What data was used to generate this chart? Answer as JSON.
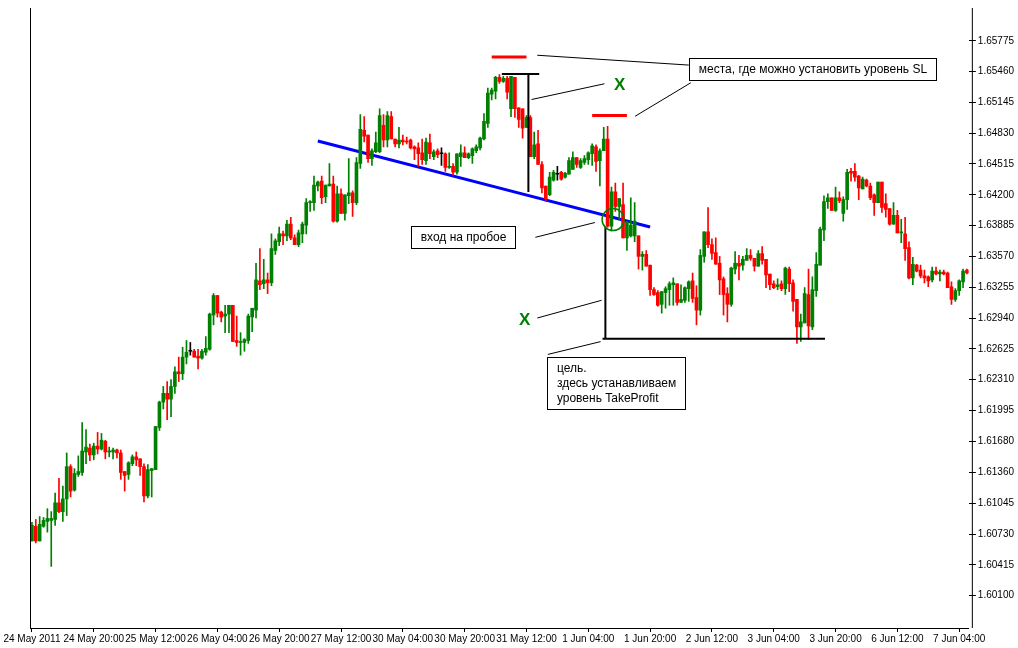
{
  "chart_data": {
    "type": "candlestick",
    "categories": [
      "24 May 2011",
      null,
      null,
      null,
      null,
      null,
      null,
      null,
      null,
      null,
      null,
      null,
      null,
      null,
      null,
      null,
      "24 May 20:00",
      null,
      null,
      null,
      null,
      null,
      null,
      null,
      null,
      null,
      null,
      null,
      null,
      null,
      null,
      null,
      "25 May 12:00",
      null,
      null,
      null,
      null,
      null,
      null,
      null,
      null,
      null,
      null,
      null,
      null,
      null,
      null,
      null,
      "26 May 04:00",
      null,
      null,
      null,
      null,
      null,
      null,
      null,
      null,
      null,
      null,
      null,
      null,
      null,
      null,
      null,
      "26 May 20:00",
      null,
      null,
      null,
      null,
      null,
      null,
      null,
      null,
      null,
      null,
      null,
      null,
      null,
      null,
      null,
      "27 May 12:00",
      null,
      null,
      null,
      null,
      null,
      null,
      null,
      null,
      null,
      null,
      null,
      null,
      null,
      null,
      null,
      "30 May 04:00",
      null,
      null,
      null,
      null,
      null,
      null,
      null,
      null,
      null,
      null,
      null,
      null,
      null,
      null,
      null,
      "30 May 20:00",
      null,
      null,
      null,
      null,
      null,
      null,
      null,
      null,
      null,
      null,
      null,
      null,
      null,
      null,
      null,
      "31 May 12:00",
      null,
      null,
      null,
      null,
      null,
      null,
      null,
      null,
      null,
      null,
      null,
      null,
      null,
      null,
      null,
      "1 Jun 04:00",
      null,
      null,
      null,
      null,
      null,
      null,
      null,
      null,
      null,
      null,
      null,
      null,
      null,
      null,
      null,
      "1 Jun 20:00",
      null,
      null,
      null,
      null,
      null,
      null,
      null,
      null,
      null,
      null,
      null,
      null,
      null,
      null,
      null,
      "2 Jun 12:00",
      null,
      null,
      null,
      null,
      null,
      null,
      null,
      null,
      null,
      null,
      null,
      null,
      null,
      null,
      null,
      "3 Jun 04:00",
      null,
      null,
      null,
      null,
      null,
      null,
      null,
      null,
      null,
      null,
      null,
      null,
      null,
      null,
      null,
      "3 Jun 20:00",
      null,
      null,
      null,
      null,
      null,
      null,
      null,
      null,
      null,
      null,
      null,
      null,
      null,
      null,
      null,
      "6 Jun 12:00",
      null,
      null,
      null,
      null,
      null,
      null,
      null,
      null,
      null,
      null,
      null,
      null,
      null,
      null,
      null,
      "7 Jun 04:00",
      null,
      null
    ],
    "ohlc": [
      [
        1.6066,
        1.6085,
        1.6066,
        1.6082
      ],
      [
        1.6081,
        1.6088,
        1.6064,
        1.6066
      ],
      [
        1.6066,
        1.6091,
        1.6066,
        1.6083
      ],
      [
        1.6081,
        1.609,
        1.608,
        1.6087
      ],
      [
        1.6086,
        1.6099,
        1.6075,
        1.6089
      ],
      [
        1.6087,
        1.6096,
        1.604,
        1.6089
      ],
      [
        1.6088,
        1.6115,
        1.6082,
        1.6105
      ],
      [
        1.6105,
        1.613,
        1.6095,
        1.6096
      ],
      [
        1.6096,
        1.6122,
        1.6086,
        1.6109
      ],
      [
        1.6109,
        1.6156,
        1.6092,
        1.6142
      ],
      [
        1.6142,
        1.6144,
        1.6111,
        1.6117
      ],
      [
        1.6118,
        1.614,
        1.6117,
        1.6135
      ],
      [
        1.6134,
        1.6153,
        1.6132,
        1.6137
      ],
      [
        1.6136,
        1.6187,
        1.6133,
        1.6158
      ],
      [
        1.6157,
        1.618,
        1.6145,
        1.6162
      ],
      [
        1.6161,
        1.6165,
        1.6148,
        1.6154
      ],
      [
        1.6154,
        1.6166,
        1.6149,
        1.6163
      ],
      [
        1.6163,
        1.6177,
        1.6155,
        1.616
      ],
      [
        1.616,
        1.6176,
        1.6159,
        1.6169
      ],
      [
        1.6168,
        1.6169,
        1.615,
        1.6157
      ],
      [
        1.6157,
        1.6162,
        1.6152,
        1.6158
      ],
      [
        1.6157,
        1.6161,
        1.615,
        1.6159
      ],
      [
        1.6159,
        1.616,
        1.6151,
        1.6156
      ],
      [
        1.6156,
        1.6159,
        1.6129,
        1.6136
      ],
      [
        1.6137,
        1.6137,
        1.6117,
        1.6133
      ],
      [
        1.6134,
        1.6147,
        1.6129,
        1.6146
      ],
      [
        1.6145,
        1.6154,
        1.6143,
        1.6152
      ],
      [
        1.6152,
        1.6157,
        1.6143,
        1.6149
      ],
      [
        1.615,
        1.615,
        1.6133,
        1.6142
      ],
      [
        1.6142,
        1.6145,
        1.6106,
        1.6112
      ],
      [
        1.6112,
        1.6144,
        1.611,
        1.6139
      ],
      [
        1.6138,
        1.614,
        1.6111,
        1.614
      ],
      [
        1.6139,
        1.6183,
        1.6139,
        1.6183
      ],
      [
        1.6182,
        1.6209,
        1.6179,
        1.6208
      ],
      [
        1.6208,
        1.6224,
        1.6201,
        1.6217
      ],
      [
        1.6217,
        1.6229,
        1.619,
        1.6211
      ],
      [
        1.6211,
        1.6231,
        1.6193,
        1.6224
      ],
      [
        1.6224,
        1.6244,
        1.6217,
        1.6239
      ],
      [
        1.6239,
        1.6254,
        1.6229,
        1.6237
      ],
      [
        1.6237,
        1.6264,
        1.6231,
        1.6254
      ],
      [
        1.6254,
        1.6271,
        1.6247,
        1.6259
      ],
      [
        1.626,
        1.6269,
        1.6256,
        1.626
      ],
      [
        1.626,
        1.6262,
        1.6254,
        1.6254
      ],
      [
        1.6255,
        1.6262,
        1.6242,
        1.6253
      ],
      [
        1.6253,
        1.6262,
        1.6252,
        1.626
      ],
      [
        1.6259,
        1.6275,
        1.6256,
        1.6263
      ],
      [
        1.6262,
        1.6299,
        1.6261,
        1.6298
      ],
      [
        1.6297,
        1.6319,
        1.6287,
        1.6317
      ],
      [
        1.6317,
        1.6317,
        1.6295,
        1.6299
      ],
      [
        1.63,
        1.6301,
        1.629,
        1.6295
      ],
      [
        1.6296,
        1.6307,
        1.6279,
        1.6298
      ],
      [
        1.6298,
        1.6307,
        1.6279,
        1.6307
      ],
      [
        1.6307,
        1.6307,
        1.627,
        1.627
      ],
      [
        1.6271,
        1.6296,
        1.6265,
        1.6269
      ],
      [
        1.6269,
        1.6279,
        1.6256,
        1.627
      ],
      [
        1.6269,
        1.6273,
        1.626,
        1.6272
      ],
      [
        1.6271,
        1.6298,
        1.6268,
        1.6296
      ],
      [
        1.6295,
        1.6304,
        1.628,
        1.6304
      ],
      [
        1.6302,
        1.635,
        1.6294,
        1.6333
      ],
      [
        1.6332,
        1.6365,
        1.6323,
        1.6328
      ],
      [
        1.6329,
        1.6354,
        1.6324,
        1.6333
      ],
      [
        1.6333,
        1.634,
        1.6319,
        1.633
      ],
      [
        1.633,
        1.638,
        1.6327,
        1.6365
      ],
      [
        1.6363,
        1.6375,
        1.6359,
        1.6373
      ],
      [
        1.6372,
        1.6387,
        1.6368,
        1.638
      ],
      [
        1.638,
        1.6383,
        1.6369,
        1.6378
      ],
      [
        1.6378,
        1.6394,
        1.6373,
        1.639
      ],
      [
        1.639,
        1.6397,
        1.6374,
        1.6376
      ],
      [
        1.6376,
        1.6379,
        1.6369,
        1.6369
      ],
      [
        1.6369,
        1.6384,
        1.6367,
        1.6381
      ],
      [
        1.638,
        1.6392,
        1.6371,
        1.639
      ],
      [
        1.6389,
        1.6416,
        1.638,
        1.6412
      ],
      [
        1.6412,
        1.6414,
        1.6403,
        1.6413
      ],
      [
        1.6412,
        1.6439,
        1.6404,
        1.643
      ],
      [
        1.6429,
        1.6434,
        1.6424,
        1.6433
      ],
      [
        1.6434,
        1.6439,
        1.6411,
        1.6417
      ],
      [
        1.6418,
        1.643,
        1.6412,
        1.643
      ],
      [
        1.6429,
        1.6452,
        1.6429,
        1.6431
      ],
      [
        1.6431,
        1.6439,
        1.6392,
        1.6393
      ],
      [
        1.6393,
        1.6429,
        1.6392,
        1.6421
      ],
      [
        1.6421,
        1.6426,
        1.6401,
        1.6401
      ],
      [
        1.6401,
        1.642,
        1.6394,
        1.642
      ],
      [
        1.6419,
        1.6457,
        1.6411,
        1.6422
      ],
      [
        1.6422,
        1.6424,
        1.6398,
        1.6412
      ],
      [
        1.6412,
        1.6458,
        1.641,
        1.6453
      ],
      [
        1.6452,
        1.6502,
        1.6447,
        1.6487
      ],
      [
        1.6486,
        1.65,
        1.6474,
        1.648
      ],
      [
        1.6481,
        1.6481,
        1.6453,
        1.6457
      ],
      [
        1.6457,
        1.6467,
        1.645,
        1.6465
      ],
      [
        1.6464,
        1.6484,
        1.6463,
        1.6473
      ],
      [
        1.6464,
        1.6508,
        1.6463,
        1.6501
      ],
      [
        1.6491,
        1.6502,
        1.6469,
        1.6476
      ],
      [
        1.6476,
        1.6505,
        1.6469,
        1.6501
      ],
      [
        1.65,
        1.6505,
        1.6477,
        1.6477
      ],
      [
        1.6477,
        1.6477,
        1.6469,
        1.6472
      ],
      [
        1.6472,
        1.6489,
        1.6468,
        1.6476
      ],
      [
        1.6476,
        1.6481,
        1.6471,
        1.6474
      ],
      [
        1.6475,
        1.6479,
        1.6472,
        1.6474
      ],
      [
        1.6476,
        1.6477,
        1.6467,
        1.6468
      ],
      [
        1.6469,
        1.647,
        1.6456,
        1.6467
      ],
      [
        1.6468,
        1.6473,
        1.6449,
        1.6462
      ],
      [
        1.6463,
        1.6477,
        1.6451,
        1.6456
      ],
      [
        1.6455,
        1.6478,
        1.6451,
        1.6474
      ],
      [
        1.6473,
        1.6482,
        1.6457,
        1.6462
      ],
      [
        1.6459,
        1.6466,
        1.6456,
        1.6464
      ],
      [
        1.6465,
        1.6467,
        1.6458,
        1.6461
      ],
      [
        1.6462,
        1.6468,
        1.645,
        1.6462
      ],
      [
        1.6462,
        1.6463,
        1.6444,
        1.6448
      ],
      [
        1.6448,
        1.6463,
        1.6447,
        1.6449
      ],
      [
        1.6449,
        1.6452,
        1.644,
        1.6443
      ],
      [
        1.6443,
        1.6462,
        1.6441,
        1.6462
      ],
      [
        1.6459,
        1.6471,
        1.6449,
        1.6463
      ],
      [
        1.6463,
        1.6469,
        1.6458,
        1.6458
      ],
      [
        1.6458,
        1.6463,
        1.6457,
        1.6462
      ],
      [
        1.646,
        1.6468,
        1.6452,
        1.6467
      ],
      [
        1.6465,
        1.6471,
        1.6463,
        1.6469
      ],
      [
        1.6468,
        1.6479,
        1.6466,
        1.6478
      ],
      [
        1.6477,
        1.6503,
        1.6476,
        1.6495
      ],
      [
        1.6493,
        1.6529,
        1.6489,
        1.6524
      ],
      [
        1.6523,
        1.6529,
        1.6517,
        1.6527
      ],
      [
        1.6526,
        1.6541,
        1.6518,
        1.654
      ],
      [
        1.654,
        1.6543,
        1.6534,
        1.6536
      ],
      [
        1.6536,
        1.6541,
        1.6535,
        1.6539
      ],
      [
        1.6539,
        1.6541,
        1.6518,
        1.6525
      ],
      [
        1.6508,
        1.6541,
        1.65,
        1.6541
      ],
      [
        1.654,
        1.654,
        1.6499,
        1.6508
      ],
      [
        1.6509,
        1.6509,
        1.6489,
        1.6497
      ],
      [
        1.6508,
        1.6508,
        1.6478,
        1.6488
      ],
      [
        1.6489,
        1.6501,
        1.6489,
        1.6499
      ],
      [
        1.6499,
        1.6501,
        1.6459,
        1.6459
      ],
      [
        1.6459,
        1.6484,
        1.6457,
        1.6471
      ],
      [
        1.6472,
        1.6486,
        1.6451,
        1.6451
      ],
      [
        1.6451,
        1.6454,
        1.6422,
        1.6427
      ],
      [
        1.6429,
        1.6429,
        1.6413,
        1.6416
      ],
      [
        1.642,
        1.6443,
        1.6419,
        1.6438
      ],
      [
        1.6435,
        1.6445,
        1.6434,
        1.6443
      ],
      [
        1.6441,
        1.6449,
        1.6435,
        1.6441
      ],
      [
        1.6443,
        1.6444,
        1.6435,
        1.6436
      ],
      [
        1.6438,
        1.6443,
        1.6437,
        1.6442
      ],
      [
        1.6441,
        1.6458,
        1.6441,
        1.6455
      ],
      [
        1.6446,
        1.6464,
        1.6446,
        1.6458
      ],
      [
        1.6458,
        1.6458,
        1.6448,
        1.6451
      ],
      [
        1.6448,
        1.6457,
        1.6447,
        1.6455
      ],
      [
        1.6453,
        1.646,
        1.6451,
        1.6457
      ],
      [
        1.6456,
        1.6464,
        1.6451,
        1.6463
      ],
      [
        1.6462,
        1.6472,
        1.645,
        1.647
      ],
      [
        1.6469,
        1.6471,
        1.6444,
        1.6454
      ],
      [
        1.6455,
        1.6467,
        1.6429,
        1.6465
      ],
      [
        1.6465,
        1.6489,
        1.6465,
        1.6477
      ],
      [
        1.6477,
        1.649,
        1.6387,
        1.6388
      ],
      [
        1.6388,
        1.6428,
        1.6383,
        1.6423
      ],
      [
        1.6423,
        1.6432,
        1.6403,
        1.6408
      ],
      [
        1.6408,
        1.6416,
        1.6394,
        1.6416
      ],
      [
        1.641,
        1.6432,
        1.6376,
        1.6376
      ],
      [
        1.6376,
        1.6393,
        1.6363,
        1.6392
      ],
      [
        1.6378,
        1.6417,
        1.6377,
        1.6389
      ],
      [
        1.6378,
        1.6412,
        1.6372,
        1.6393
      ],
      [
        1.6378,
        1.6378,
        1.6344,
        1.6357
      ],
      [
        1.6357,
        1.6362,
        1.6343,
        1.6359
      ],
      [
        1.6359,
        1.6363,
        1.6347,
        1.6347
      ],
      [
        1.6348,
        1.6348,
        1.6317,
        1.6323
      ],
      [
        1.6323,
        1.6325,
        1.6317,
        1.6318
      ],
      [
        1.632,
        1.6322,
        1.6306,
        1.6307
      ],
      [
        1.6308,
        1.6321,
        1.6299,
        1.6321
      ],
      [
        1.632,
        1.6326,
        1.6304,
        1.6324
      ],
      [
        1.6323,
        1.6331,
        1.6307,
        1.6329
      ],
      [
        1.6328,
        1.6335,
        1.6307,
        1.633
      ],
      [
        1.6329,
        1.6329,
        1.6307,
        1.631
      ],
      [
        1.631,
        1.6328,
        1.631,
        1.6313
      ],
      [
        1.6312,
        1.6326,
        1.631,
        1.6325
      ],
      [
        1.6324,
        1.6332,
        1.6311,
        1.6331
      ],
      [
        1.6332,
        1.634,
        1.631,
        1.6314
      ],
      [
        1.6315,
        1.6327,
        1.6287,
        1.6302
      ],
      [
        1.6302,
        1.6364,
        1.6297,
        1.6358
      ],
      [
        1.6357,
        1.6382,
        1.6351,
        1.6382
      ],
      [
        1.6382,
        1.6407,
        1.6366,
        1.6369
      ],
      [
        1.6369,
        1.6375,
        1.6354,
        1.636
      ],
      [
        1.6361,
        1.6376,
        1.6349,
        1.6349
      ],
      [
        1.635,
        1.6357,
        1.6318,
        1.6333
      ],
      [
        1.6334,
        1.6336,
        1.6297,
        1.6318
      ],
      [
        1.6319,
        1.6325,
        1.629,
        1.6308
      ],
      [
        1.6308,
        1.6346,
        1.6306,
        1.6345
      ],
      [
        1.6344,
        1.6362,
        1.6339,
        1.635
      ],
      [
        1.635,
        1.6358,
        1.6333,
        1.6347
      ],
      [
        1.6348,
        1.6357,
        1.6343,
        1.6354
      ],
      [
        1.6353,
        1.6365,
        1.6353,
        1.6358
      ],
      [
        1.6358,
        1.6364,
        1.6353,
        1.6355
      ],
      [
        1.6355,
        1.6355,
        1.6342,
        1.6347
      ],
      [
        1.6347,
        1.6363,
        1.6347,
        1.636
      ],
      [
        1.636,
        1.6367,
        1.6349,
        1.6353
      ],
      [
        1.6354,
        1.6354,
        1.6325,
        1.6338
      ],
      [
        1.6339,
        1.6339,
        1.6323,
        1.6328
      ],
      [
        1.6329,
        1.6332,
        1.6324,
        1.6325
      ],
      [
        1.6326,
        1.6334,
        1.6323,
        1.6328
      ],
      [
        1.6329,
        1.6332,
        1.6322,
        1.6324
      ],
      [
        1.6324,
        1.6346,
        1.6318,
        1.6345
      ],
      [
        1.6344,
        1.6346,
        1.6321,
        1.6329
      ],
      [
        1.633,
        1.6333,
        1.6301,
        1.6311
      ],
      [
        1.6313,
        1.6313,
        1.6268,
        1.6285
      ],
      [
        1.6285,
        1.6298,
        1.627,
        1.629
      ],
      [
        1.6289,
        1.6325,
        1.6289,
        1.6319
      ],
      [
        1.6318,
        1.6344,
        1.6272,
        1.6286
      ],
      [
        1.6285,
        1.6336,
        1.6282,
        1.6323
      ],
      [
        1.6322,
        1.6361,
        1.6316,
        1.6349
      ],
      [
        1.6348,
        1.6387,
        1.6348,
        1.6385
      ],
      [
        1.6384,
        1.6419,
        1.6373,
        1.6413
      ],
      [
        1.6413,
        1.6421,
        1.6406,
        1.6417
      ],
      [
        1.6417,
        1.6417,
        1.6404,
        1.6404
      ],
      [
        1.6404,
        1.6428,
        1.6403,
        1.6417
      ],
      [
        1.6417,
        1.6423,
        1.6412,
        1.6414
      ],
      [
        1.6401,
        1.6418,
        1.6393,
        1.6415
      ],
      [
        1.6415,
        1.6446,
        1.6405,
        1.6443
      ],
      [
        1.6444,
        1.6447,
        1.6434,
        1.6442
      ],
      [
        1.6444,
        1.6452,
        1.6434,
        1.6438
      ],
      [
        1.6439,
        1.644,
        1.6415,
        1.6427
      ],
      [
        1.6426,
        1.6438,
        1.6426,
        1.6436
      ],
      [
        1.6435,
        1.6436,
        1.6428,
        1.6429
      ],
      [
        1.6429,
        1.6432,
        1.6415,
        1.6417
      ],
      [
        1.642,
        1.6421,
        1.6399,
        1.6412
      ],
      [
        1.6412,
        1.6433,
        1.6412,
        1.6433
      ],
      [
        1.6433,
        1.6433,
        1.6402,
        1.6407
      ],
      [
        1.6411,
        1.6421,
        1.6397,
        1.6405
      ],
      [
        1.6406,
        1.6406,
        1.6389,
        1.639
      ],
      [
        1.639,
        1.6412,
        1.639,
        1.6399
      ],
      [
        1.6399,
        1.6404,
        1.6381,
        1.6381
      ],
      [
        1.6381,
        1.6395,
        1.6371,
        1.6382
      ],
      [
        1.638,
        1.6397,
        1.6353,
        1.6365
      ],
      [
        1.6366,
        1.6372,
        1.6334,
        1.6335
      ],
      [
        1.6335,
        1.6356,
        1.6328,
        1.6349
      ],
      [
        1.6348,
        1.6349,
        1.6341,
        1.6342
      ],
      [
        1.6343,
        1.6348,
        1.6335,
        1.6337
      ],
      [
        1.6337,
        1.6343,
        1.633,
        1.6335
      ],
      [
        1.6336,
        1.6337,
        1.6326,
        1.6332
      ],
      [
        1.6333,
        1.6346,
        1.6331,
        1.6342
      ],
      [
        1.6342,
        1.6346,
        1.6338,
        1.6339
      ],
      [
        1.6339,
        1.6343,
        1.6332,
        1.6341
      ],
      [
        1.6341,
        1.6343,
        1.6338,
        1.6339
      ],
      [
        1.634,
        1.6341,
        1.6325,
        1.6325
      ],
      [
        1.6326,
        1.6331,
        1.6308,
        1.6313
      ],
      [
        1.6313,
        1.6324,
        1.6311,
        1.6322
      ],
      [
        1.6322,
        1.6333,
        1.6317,
        1.6332
      ],
      [
        1.6331,
        1.6344,
        1.6325,
        1.6342
      ],
      [
        1.6343,
        1.6344,
        1.6339,
        1.634
      ]
    ],
    "colors": [
      "#008000",
      "#ff0000",
      "#008000",
      "#008000",
      "#008000",
      "#008000",
      "#008000",
      "#ff0000",
      "#008000",
      "#008000",
      "#ff0000",
      "#008000",
      "#008000",
      "#008000",
      "#008000",
      "#ff0000",
      "#008000",
      "#ff0000",
      "#008000",
      "#ff0000",
      "#008000",
      "#008000",
      "#ff0000",
      "#ff0000",
      "#ff0000",
      "#008000",
      "#008000",
      "#ff0000",
      "#ff0000",
      "#ff0000",
      "#008000",
      "#008000",
      "#008000",
      "#008000",
      "#008000",
      "#ff0000",
      "#008000",
      "#008000",
      "#ff0000",
      "#008000",
      "#008000",
      "#000000",
      "#ff0000",
      "#ff0000",
      "#008000",
      "#008000",
      "#008000",
      "#008000",
      "#ff0000",
      "#ff0000",
      "#008000",
      "#008000",
      "#ff0000",
      "#ff0000",
      "#008000",
      "#008000",
      "#008000",
      "#008000",
      "#008000",
      "#ff0000",
      "#008000",
      "#ff0000",
      "#008000",
      "#008000",
      "#008000",
      "#ff0000",
      "#008000",
      "#ff0000",
      "#ff0000",
      "#008000",
      "#008000",
      "#008000",
      "#008000",
      "#008000",
      "#008000",
      "#ff0000",
      "#008000",
      "#008000",
      "#ff0000",
      "#008000",
      "#ff0000",
      "#008000",
      "#008000",
      "#ff0000",
      "#008000",
      "#008000",
      "#ff0000",
      "#ff0000",
      "#008000",
      "#008000",
      "#008000",
      "#ff0000",
      "#008000",
      "#ff0000",
      "#ff0000",
      "#008000",
      "#ff0000",
      "#ff0000",
      "#ff0000",
      "#ff0000",
      "#ff0000",
      "#ff0000",
      "#008000",
      "#ff0000",
      "#008000",
      "#ff0000",
      "#000000",
      "#ff0000",
      "#008000",
      "#ff0000",
      "#008000",
      "#008000",
      "#ff0000",
      "#008000",
      "#008000",
      "#008000",
      "#008000",
      "#008000",
      "#008000",
      "#008000",
      "#008000",
      "#ff0000",
      "#008000",
      "#ff0000",
      "#008000",
      "#ff0000",
      "#ff0000",
      "#ff0000",
      "#008000",
      "#ff0000",
      "#008000",
      "#ff0000",
      "#ff0000",
      "#ff0000",
      "#008000",
      "#008000",
      "#000000",
      "#ff0000",
      "#008000",
      "#008000",
      "#008000",
      "#ff0000",
      "#008000",
      "#008000",
      "#008000",
      "#008000",
      "#ff0000",
      "#008000",
      "#008000",
      "#ff0000",
      "#008000",
      "#ff0000",
      "#008000",
      "#ff0000",
      "#008000",
      "#008000",
      "#008000",
      "#ff0000",
      "#008000",
      "#ff0000",
      "#ff0000",
      "#ff0000",
      "#ff0000",
      "#008000",
      "#008000",
      "#008000",
      "#008000",
      "#ff0000",
      "#008000",
      "#008000",
      "#008000",
      "#ff0000",
      "#ff0000",
      "#008000",
      "#008000",
      "#ff0000",
      "#ff0000",
      "#ff0000",
      "#ff0000",
      "#ff0000",
      "#ff0000",
      "#008000",
      "#008000",
      "#ff0000",
      "#008000",
      "#008000",
      "#ff0000",
      "#ff0000",
      "#008000",
      "#ff0000",
      "#ff0000",
      "#ff0000",
      "#ff0000",
      "#008000",
      "#ff0000",
      "#008000",
      "#ff0000",
      "#ff0000",
      "#ff0000",
      "#008000",
      "#008000",
      "#ff0000",
      "#008000",
      "#008000",
      "#008000",
      "#008000",
      "#008000",
      "#ff0000",
      "#008000",
      "#ff0000",
      "#008000",
      "#008000",
      "#ff0000",
      "#ff0000",
      "#ff0000",
      "#008000",
      "#ff0000",
      "#ff0000",
      "#ff0000",
      "#008000",
      "#ff0000",
      "#ff0000",
      "#ff0000",
      "#008000",
      "#ff0000",
      "#008000",
      "#ff0000",
      "#ff0000",
      "#008000",
      "#ff0000",
      "#ff0000",
      "#ff0000",
      "#ff0000",
      "#008000",
      "#ff0000",
      "#008000",
      "#ff0000",
      "#ff0000",
      "#ff0000",
      "#008000",
      "#008000",
      "#008000",
      "#ff0000"
    ],
    "series": [
      {
        "type": "line",
        "color": "#0000ff",
        "values": [
          null,
          null,
          null,
          null,
          null,
          null,
          null,
          null,
          null,
          null,
          null,
          null,
          null,
          null,
          null,
          null,
          null,
          null,
          null,
          null,
          null,
          null,
          null,
          null,
          null,
          null,
          null,
          null,
          null,
          null,
          null,
          null,
          null,
          null,
          null,
          null,
          null,
          null,
          null,
          null,
          null,
          null,
          null,
          null,
          null,
          null,
          null,
          null,
          null,
          null,
          null,
          null,
          null,
          null,
          null,
          null,
          null,
          null,
          null,
          null,
          null,
          null,
          null,
          null,
          null,
          null,
          null,
          null,
          null,
          null,
          null,
          null,
          null,
          null,
          1.6475,
          null,
          null,
          null,
          null,
          null,
          null,
          null,
          null,
          null,
          null,
          null,
          null,
          null,
          null,
          null,
          null,
          null,
          null,
          null,
          null,
          null,
          null,
          null,
          null,
          null,
          null,
          null,
          null,
          null,
          null,
          null,
          null,
          null,
          null,
          null,
          null,
          null,
          null,
          null,
          null,
          null,
          null,
          null,
          null,
          null,
          null,
          null,
          null,
          null,
          null,
          null,
          null,
          null,
          null,
          null,
          null,
          null,
          null,
          null,
          null,
          null,
          null,
          null,
          null,
          null,
          null,
          null,
          null,
          null,
          null,
          null,
          null,
          null,
          null,
          null,
          null,
          null,
          null,
          null,
          null,
          null,
          null,
          null,
          null,
          null,
          1.6387,
          null,
          null,
          null,
          null,
          null,
          null,
          null,
          null,
          null,
          null,
          null,
          null,
          null,
          null,
          null,
          null,
          null,
          null,
          null,
          null,
          null,
          null,
          null,
          null,
          null,
          null,
          null,
          null,
          null,
          null,
          null,
          null,
          null,
          null,
          null,
          null,
          null,
          null,
          null,
          null,
          null,
          null,
          null,
          null,
          null,
          null,
          null,
          null,
          null,
          null,
          null,
          null,
          null,
          null,
          null,
          null,
          null,
          null,
          null,
          null,
          null,
          null,
          null,
          null,
          null,
          null,
          null,
          null,
          null,
          null,
          null,
          null,
          null,
          null,
          null,
          null,
          null,
          null,
          null,
          null,
          null,
          null
        ]
      },
      {
        "type": "line",
        "color": "#ff0000",
        "values": [
          null,
          null,
          null,
          null,
          null,
          null,
          null,
          null,
          null,
          null,
          null,
          null,
          null,
          null,
          null,
          null,
          null,
          null,
          null,
          null,
          null,
          null,
          null,
          null,
          null,
          null,
          null,
          null,
          null,
          null,
          null,
          null,
          null,
          null,
          null,
          null,
          null,
          null,
          null,
          null,
          null,
          null,
          null,
          null,
          null,
          null,
          null,
          null,
          null,
          null,
          null,
          null,
          null,
          null,
          null,
          null,
          null,
          null,
          null,
          null,
          null,
          null,
          null,
          null,
          null,
          null,
          null,
          null,
          null,
          null,
          null,
          null,
          null,
          null,
          null,
          null,
          null,
          null,
          null,
          null,
          null,
          null,
          null,
          null,
          null,
          null,
          null,
          null,
          null,
          null,
          null,
          null,
          null,
          null,
          null,
          null,
          null,
          null,
          null,
          null,
          null,
          null,
          null,
          null,
          null,
          null,
          null,
          null,
          null,
          null,
          null,
          null,
          null,
          null,
          null,
          null,
          null,
          null,
          null,
          1.6561,
          null,
          null,
          null,
          null,
          null,
          null,
          null,
          null,
          1.6561,
          null,
          null,
          null,
          null,
          null,
          null,
          null,
          null,
          null,
          null,
          null,
          null,
          null,
          null,
          null,
          null,
          null,
          null,
          null,
          null,
          null,
          null,
          null,
          null,
          null,
          null,
          null,
          null,
          null,
          null,
          null,
          null,
          null,
          null,
          null,
          null,
          null,
          null,
          null,
          null,
          null,
          null,
          null,
          null,
          null,
          null,
          null,
          null,
          null,
          null,
          null,
          null,
          null,
          null,
          null,
          null,
          null,
          null,
          null,
          null,
          null,
          null,
          null,
          null,
          null,
          null,
          null,
          null,
          null,
          null,
          null,
          null,
          null,
          null,
          null,
          null,
          null,
          null,
          null,
          null,
          null,
          null,
          null,
          null,
          null,
          null,
          null,
          null,
          null,
          null,
          null,
          null,
          null,
          null,
          null,
          null,
          null,
          null,
          null,
          null,
          null,
          null,
          null,
          null,
          null,
          null,
          null,
          null,
          null,
          null,
          null,
          null,
          null,
          null
        ]
      },
      {
        "type": "line",
        "color": "#ff0000",
        "values": [
          null,
          null,
          null,
          null,
          null,
          null,
          null,
          null,
          null,
          null,
          null,
          null,
          null,
          null,
          null,
          null,
          null,
          null,
          null,
          null,
          null,
          null,
          null,
          null,
          null,
          null,
          null,
          null,
          null,
          null,
          null,
          null,
          null,
          null,
          null,
          null,
          null,
          null,
          null,
          null,
          null,
          null,
          null,
          null,
          null,
          null,
          null,
          null,
          null,
          null,
          null,
          null,
          null,
          null,
          null,
          null,
          null,
          null,
          null,
          null,
          null,
          null,
          null,
          null,
          null,
          null,
          null,
          null,
          null,
          null,
          null,
          null,
          null,
          null,
          null,
          null,
          null,
          null,
          null,
          null,
          null,
          null,
          null,
          null,
          null,
          null,
          null,
          null,
          null,
          null,
          null,
          null,
          null,
          null,
          null,
          null,
          null,
          null,
          null,
          null,
          null,
          null,
          null,
          null,
          null,
          null,
          null,
          null,
          null,
          null,
          null,
          null,
          null,
          null,
          null,
          null,
          null,
          null,
          null,
          null,
          null,
          null,
          null,
          null,
          null,
          null,
          null,
          null,
          null,
          null,
          null,
          null,
          null,
          null,
          null,
          null,
          null,
          null,
          null,
          null,
          null,
          null,
          null,
          null,
          null,
          1.6501,
          null,
          null,
          null,
          null,
          null,
          null,
          null,
          null,
          1.6501,
          null,
          null,
          null,
          null,
          null,
          null,
          null,
          null,
          null,
          null,
          null,
          null,
          null,
          null,
          null,
          null,
          null,
          null,
          null,
          null,
          null,
          null,
          null,
          null,
          null,
          null,
          null,
          null,
          null,
          null,
          null,
          null,
          null,
          null,
          null,
          null,
          null,
          null,
          null,
          null,
          null,
          null,
          null,
          null,
          null,
          null,
          null,
          null,
          null,
          null,
          null,
          null,
          null,
          null,
          null,
          null,
          null,
          null,
          null,
          null,
          null,
          null,
          null,
          null,
          null,
          null,
          null,
          null,
          null,
          null,
          null,
          null,
          null,
          null,
          null,
          null,
          null,
          null,
          null,
          null,
          null,
          null,
          null,
          null,
          null,
          null,
          null,
          null
        ]
      }
    ],
    "ylim": [
      1.5977,
      1.6611
    ],
    "yticks": [
      {
        "value": 1.601,
        "label": "1.60100"
      },
      1.60415,
      {
        "value": 1.6073,
        "label": "1.60730"
      },
      1.61045,
      {
        "value": 1.6136,
        "label": "1.61360"
      },
      {
        "value": 1.6168,
        "label": "1.61680"
      },
      1.61995,
      {
        "value": 1.6231,
        "label": "1.62310"
      },
      1.62625,
      {
        "value": 1.6294,
        "label": "1.62940"
      },
      1.63255,
      {
        "value": 1.6357,
        "label": "1.63570"
      },
      1.63885,
      {
        "value": 1.642,
        "label": "1.64200"
      },
      1.64515,
      {
        "value": 1.6483,
        "label": "1.64830"
      },
      1.65145,
      {
        "value": 1.6546,
        "label": "1.65460"
      },
      1.65775
    ],
    "annotations": [
      "места, где можно установить уровень SL",
      "вход на пробое",
      "цель.\nздесь устанавливаем\nуровень TakeProfit",
      "X",
      "X"
    ]
  }
}
